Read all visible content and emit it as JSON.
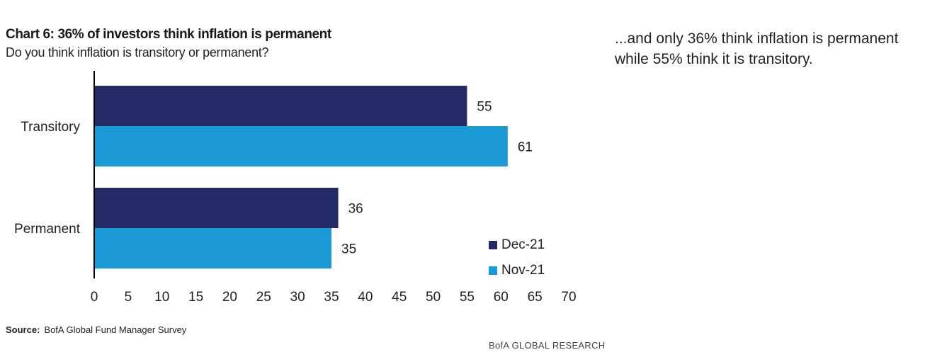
{
  "title": "Chart 6: 36% of investors think inflation is permanent",
  "subtitle": "Do you think inflation is transitory or permanent?",
  "side_note": "...and only 36% think inflation is permanent while 55% think it is transitory.",
  "source": {
    "label": "Source:",
    "text": "BofA Global Fund Manager Survey"
  },
  "footer": "BofA GLOBAL RESEARCH",
  "colors": {
    "dec21": "#232a65",
    "nov21": "#1c9ad6"
  },
  "chart_data": {
    "type": "bar",
    "orientation": "horizontal",
    "categories": [
      "Transitory",
      "Permanent"
    ],
    "series": [
      {
        "name": "Dec-21",
        "values": [
          55,
          36
        ]
      },
      {
        "name": "Nov-21",
        "values": [
          61,
          35
        ]
      }
    ],
    "xlim": [
      0,
      70
    ],
    "xticks": [
      0,
      5,
      10,
      15,
      20,
      25,
      30,
      35,
      40,
      45,
      50,
      55,
      60,
      65,
      70
    ],
    "grid": false,
    "data_labels": true,
    "legend_position": "bottom-right"
  }
}
